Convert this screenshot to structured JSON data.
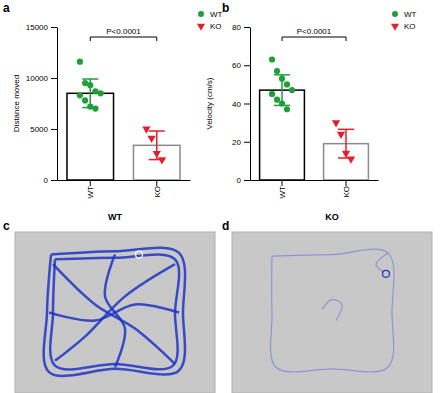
{
  "chart_data": [
    {
      "type": "bar",
      "panel": "a",
      "y_label": "Distance moved",
      "categories": [
        "WT",
        "KO"
      ],
      "values": [
        8500,
        3400
      ],
      "errors": [
        1400,
        1400
      ],
      "ylim": [
        0,
        15000
      ],
      "yticks": [
        0,
        5000,
        10000,
        15000
      ],
      "annotation": "P<0.0001",
      "legend": "top-right",
      "series": [
        {
          "name": "WT",
          "color": "#1f9e3a",
          "marker": "circle",
          "points": [
            11600,
            9500,
            9300,
            8700,
            8500,
            8300,
            7800,
            7200,
            7000
          ]
        },
        {
          "name": "KO",
          "color": "#e3202a",
          "marker": "triangle-down",
          "points": [
            5000,
            4100,
            2600,
            2000
          ]
        }
      ]
    },
    {
      "type": "bar",
      "panel": "b",
      "y_label": "Velocity (cm/s)",
      "categories": [
        "WT",
        "KO"
      ],
      "values": [
        47,
        19
      ],
      "errors": [
        8,
        7.5
      ],
      "ylim": [
        0,
        80
      ],
      "yticks": [
        0,
        20,
        40,
        60,
        80
      ],
      "annotation": "P<0.0001",
      "legend": "top-right",
      "series": [
        {
          "name": "WT",
          "color": "#1f9e3a",
          "marker": "circle",
          "points": [
            63,
            57,
            53,
            50,
            47,
            45,
            42,
            40,
            37
          ]
        },
        {
          "name": "KO",
          "color": "#e3202a",
          "marker": "triangle-down",
          "points": [
            30,
            24,
            14,
            11
          ]
        }
      ]
    }
  ],
  "panels": [
    {
      "label": "c",
      "title": "WT"
    },
    {
      "label": "d",
      "title": "KO"
    }
  ]
}
